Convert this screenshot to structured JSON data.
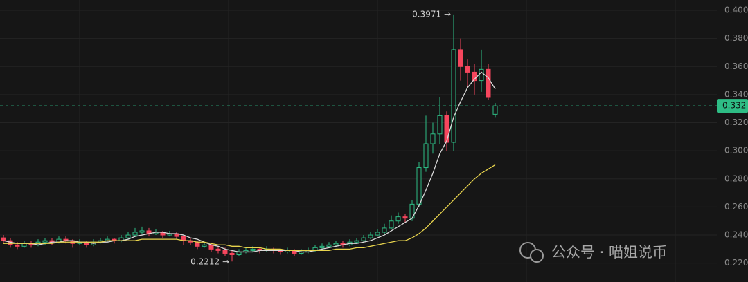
{
  "chart_data": {
    "type": "candlestick",
    "up_color": "#2ebd85",
    "down_color": "#f6465d",
    "ylim": [
      0.2164,
      0.4074
    ],
    "yticks": [
      {
        "value": 0.22,
        "label": "0.220"
      },
      {
        "value": 0.24,
        "label": "0.240"
      },
      {
        "value": 0.26,
        "label": "0.260"
      },
      {
        "value": 0.28,
        "label": "0.280"
      },
      {
        "value": 0.3,
        "label": "0.300"
      },
      {
        "value": 0.32,
        "label": "0.320"
      },
      {
        "value": 0.34,
        "label": "0.340"
      },
      {
        "value": 0.36,
        "label": "0.360"
      },
      {
        "value": 0.38,
        "label": "0.380"
      },
      {
        "value": 0.4,
        "label": "0.400"
      }
    ],
    "grid": true,
    "candles": [
      [
        0.238,
        0.24,
        0.234,
        0.236
      ],
      [
        0.236,
        0.238,
        0.231,
        0.233
      ],
      [
        0.233,
        0.235,
        0.23,
        0.232
      ],
      [
        0.232,
        0.236,
        0.231,
        0.234
      ],
      [
        0.234,
        0.236,
        0.231,
        0.233
      ],
      [
        0.233,
        0.237,
        0.232,
        0.235
      ],
      [
        0.235,
        0.238,
        0.233,
        0.236
      ],
      [
        0.236,
        0.238,
        0.233,
        0.235
      ],
      [
        0.235,
        0.239,
        0.234,
        0.237
      ],
      [
        0.237,
        0.239,
        0.234,
        0.236
      ],
      [
        0.236,
        0.237,
        0.231,
        0.234
      ],
      [
        0.234,
        0.237,
        0.233,
        0.235
      ],
      [
        0.235,
        0.236,
        0.231,
        0.233
      ],
      [
        0.233,
        0.237,
        0.232,
        0.235
      ],
      [
        0.235,
        0.238,
        0.234,
        0.236
      ],
      [
        0.236,
        0.239,
        0.235,
        0.237
      ],
      [
        0.237,
        0.238,
        0.234,
        0.236
      ],
      [
        0.236,
        0.24,
        0.235,
        0.238
      ],
      [
        0.238,
        0.242,
        0.237,
        0.24
      ],
      [
        0.24,
        0.245,
        0.239,
        0.242
      ],
      [
        0.242,
        0.246,
        0.241,
        0.243
      ],
      [
        0.243,
        0.245,
        0.239,
        0.241
      ],
      [
        0.241,
        0.244,
        0.24,
        0.242
      ],
      [
        0.242,
        0.243,
        0.238,
        0.24
      ],
      [
        0.24,
        0.243,
        0.239,
        0.241
      ],
      [
        0.241,
        0.242,
        0.237,
        0.239
      ],
      [
        0.239,
        0.24,
        0.233,
        0.236
      ],
      [
        0.236,
        0.238,
        0.233,
        0.235
      ],
      [
        0.235,
        0.236,
        0.23,
        0.232
      ],
      [
        0.232,
        0.235,
        0.231,
        0.233
      ],
      [
        0.233,
        0.234,
        0.228,
        0.23
      ],
      [
        0.23,
        0.232,
        0.227,
        0.229
      ],
      [
        0.229,
        0.231,
        0.225,
        0.227
      ],
      [
        0.227,
        0.229,
        0.2212,
        0.226
      ],
      [
        0.226,
        0.23,
        0.225,
        0.228
      ],
      [
        0.228,
        0.231,
        0.227,
        0.229
      ],
      [
        0.229,
        0.232,
        0.228,
        0.23
      ],
      [
        0.23,
        0.231,
        0.227,
        0.229
      ],
      [
        0.229,
        0.232,
        0.228,
        0.23
      ],
      [
        0.23,
        0.231,
        0.227,
        0.229
      ],
      [
        0.229,
        0.23,
        0.226,
        0.228
      ],
      [
        0.228,
        0.231,
        0.227,
        0.229
      ],
      [
        0.229,
        0.23,
        0.225,
        0.227
      ],
      [
        0.227,
        0.23,
        0.226,
        0.228
      ],
      [
        0.228,
        0.231,
        0.227,
        0.229
      ],
      [
        0.229,
        0.233,
        0.228,
        0.231
      ],
      [
        0.231,
        0.234,
        0.23,
        0.232
      ],
      [
        0.232,
        0.235,
        0.231,
        0.233
      ],
      [
        0.233,
        0.236,
        0.232,
        0.234
      ],
      [
        0.234,
        0.236,
        0.231,
        0.233
      ],
      [
        0.233,
        0.237,
        0.232,
        0.235
      ],
      [
        0.235,
        0.238,
        0.234,
        0.236
      ],
      [
        0.236,
        0.24,
        0.235,
        0.238
      ],
      [
        0.238,
        0.242,
        0.237,
        0.24
      ],
      [
        0.24,
        0.244,
        0.239,
        0.242
      ],
      [
        0.242,
        0.248,
        0.241,
        0.245
      ],
      [
        0.245,
        0.254,
        0.244,
        0.25
      ],
      [
        0.25,
        0.256,
        0.248,
        0.253
      ],
      [
        0.253,
        0.255,
        0.249,
        0.252
      ],
      [
        0.252,
        0.265,
        0.25,
        0.262
      ],
      [
        0.262,
        0.292,
        0.26,
        0.288
      ],
      [
        0.288,
        0.325,
        0.285,
        0.305
      ],
      [
        0.305,
        0.32,
        0.298,
        0.312
      ],
      [
        0.312,
        0.338,
        0.305,
        0.325
      ],
      [
        0.325,
        0.328,
        0.3,
        0.306
      ],
      [
        0.306,
        0.3971,
        0.3,
        0.372
      ],
      [
        0.372,
        0.38,
        0.35,
        0.36
      ],
      [
        0.36,
        0.365,
        0.345,
        0.356
      ],
      [
        0.356,
        0.362,
        0.34,
        0.35
      ],
      [
        0.35,
        0.372,
        0.342,
        0.358
      ],
      [
        0.358,
        0.362,
        0.336,
        0.338
      ],
      [
        0.326,
        0.334,
        0.324,
        0.332
      ]
    ],
    "series": [
      {
        "color": "#d9d9d9",
        "values": [
          0.236,
          0.235,
          0.234,
          0.234,
          0.234,
          0.233,
          0.234,
          0.235,
          0.235,
          0.236,
          0.236,
          0.235,
          0.235,
          0.234,
          0.235,
          0.235,
          0.236,
          0.236,
          0.237,
          0.239,
          0.24,
          0.241,
          0.242,
          0.242,
          0.241,
          0.241,
          0.24,
          0.238,
          0.237,
          0.235,
          0.233,
          0.232,
          0.23,
          0.229,
          0.228,
          0.228,
          0.228,
          0.229,
          0.229,
          0.229,
          0.229,
          0.229,
          0.229,
          0.228,
          0.228,
          0.229,
          0.23,
          0.231,
          0.232,
          0.233,
          0.234,
          0.234,
          0.235,
          0.236,
          0.238,
          0.24,
          0.243,
          0.246,
          0.249,
          0.252,
          0.261,
          0.272,
          0.284,
          0.298,
          0.307,
          0.324,
          0.335,
          0.345,
          0.351,
          0.356,
          0.352,
          0.344
        ]
      },
      {
        "color": "#e8d44d",
        "values": [
          0.234,
          0.234,
          0.234,
          0.234,
          0.234,
          0.234,
          0.234,
          0.234,
          0.235,
          0.235,
          0.235,
          0.235,
          0.235,
          0.235,
          0.235,
          0.236,
          0.236,
          0.236,
          0.236,
          0.236,
          0.237,
          0.237,
          0.237,
          0.237,
          0.237,
          0.237,
          0.236,
          0.236,
          0.235,
          0.235,
          0.234,
          0.233,
          0.233,
          0.232,
          0.232,
          0.231,
          0.231,
          0.231,
          0.23,
          0.23,
          0.23,
          0.229,
          0.229,
          0.229,
          0.229,
          0.229,
          0.229,
          0.229,
          0.23,
          0.23,
          0.23,
          0.231,
          0.231,
          0.232,
          0.233,
          0.234,
          0.235,
          0.236,
          0.236,
          0.238,
          0.241,
          0.245,
          0.25,
          0.255,
          0.26,
          0.265,
          0.27,
          0.275,
          0.28,
          0.284,
          0.287,
          0.29
        ]
      }
    ],
    "current_price": 0.332,
    "current_price_color": "#2ebd85",
    "annotations": [
      "0.3971 →",
      "0.2212 →"
    ],
    "watermark": "公众号 · 喵姐说币"
  }
}
